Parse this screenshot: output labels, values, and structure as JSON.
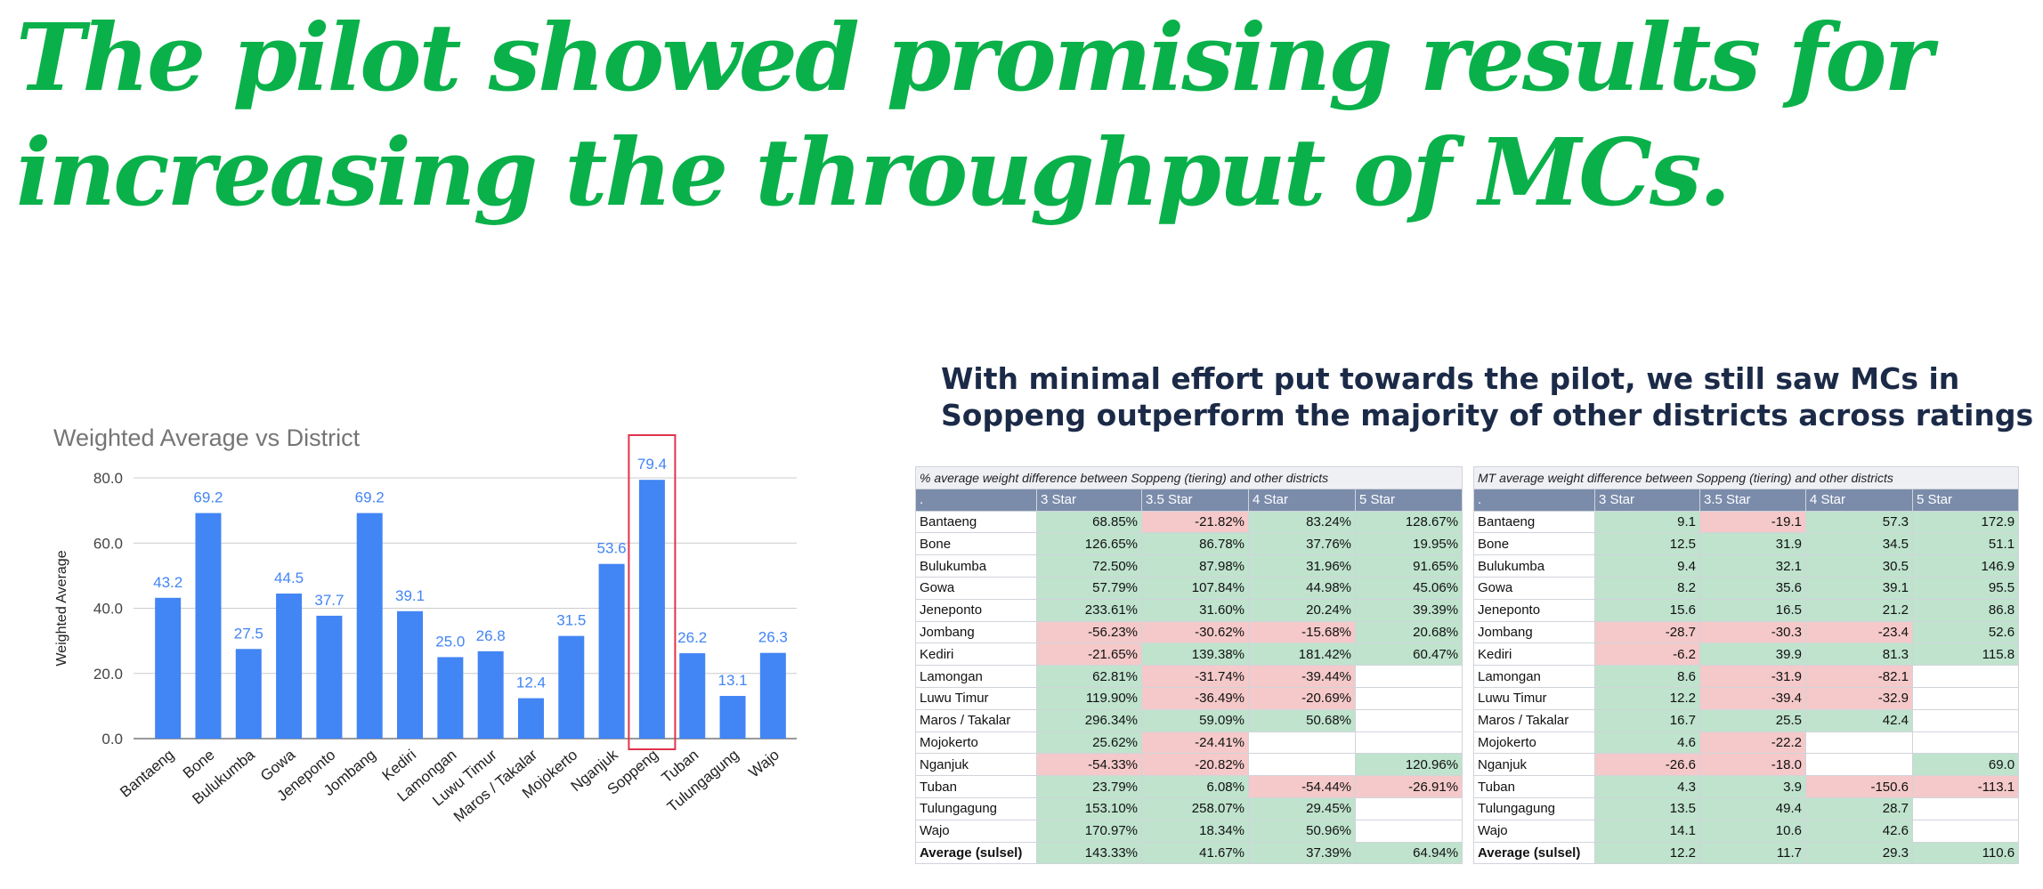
{
  "headline": {
    "line1": "The pilot showed promising results for",
    "line2": "increasing the throughput of MCs."
  },
  "subheadline": {
    "line1": "With minimal effort put towards the pilot, we still saw MCs in",
    "line2": "Soppeng outperform the majority of other districts across ratings"
  },
  "colors": {
    "headline": "#0ab14a",
    "subheadline": "#1b2a47",
    "bar": "#4285f4",
    "highlight_box": "#e0334c",
    "positive_cell": "#bfe3cd",
    "negative_cell": "#f5c9c9",
    "table_header": "#7b8cab"
  },
  "chart_data": {
    "type": "bar",
    "title": "Weighted Average vs District",
    "xlabel": "",
    "ylabel": "Weighted Average",
    "categories": [
      "Bantaeng",
      "Bone",
      "Bulukumba",
      "Gowa",
      "Jeneponto",
      "Jombang",
      "Kediri",
      "Lamongan",
      "Luwu Timur",
      "Maros / Takalar",
      "Mojokerto",
      "Nganjuk",
      "Soppeng",
      "Tuban",
      "Tulungagung",
      "Wajo"
    ],
    "values": [
      43.2,
      69.2,
      27.5,
      44.5,
      37.7,
      69.2,
      39.1,
      25.0,
      26.8,
      12.4,
      31.5,
      53.6,
      79.4,
      26.2,
      13.1,
      26.3
    ],
    "value_labels": [
      "43.2",
      "69.2",
      "27.5",
      "44.5",
      "37.7",
      "69.2",
      "39.1",
      "25.0",
      "26.8",
      "12.4",
      "31.5",
      "53.6",
      "79.4",
      "26.2",
      "13.1",
      "26.3"
    ],
    "yticks": [
      "0.0",
      "20.0",
      "40.0",
      "60.0",
      "80.0"
    ],
    "ylim": [
      0,
      80
    ],
    "grid": true,
    "legend": "none",
    "highlighted_category": "Soppeng"
  },
  "table_pct": {
    "caption": "% average weight difference between Soppeng (tiering) and other districts",
    "header": [
      ".",
      "3 Star",
      "3.5 Star",
      "4 Star",
      "5 Star"
    ],
    "rows": [
      {
        "district": "Bantaeng",
        "vals": [
          "68.85%",
          "-21.82%",
          "83.24%",
          "128.67%"
        ]
      },
      {
        "district": "Bone",
        "vals": [
          "126.65%",
          "86.78%",
          "37.76%",
          "19.95%"
        ]
      },
      {
        "district": "Bulukumba",
        "vals": [
          "72.50%",
          "87.98%",
          "31.96%",
          "91.65%"
        ]
      },
      {
        "district": "Gowa",
        "vals": [
          "57.79%",
          "107.84%",
          "44.98%",
          "45.06%"
        ]
      },
      {
        "district": "Jeneponto",
        "vals": [
          "233.61%",
          "31.60%",
          "20.24%",
          "39.39%"
        ]
      },
      {
        "district": "Jombang",
        "vals": [
          "-56.23%",
          "-30.62%",
          "-15.68%",
          "20.68%"
        ]
      },
      {
        "district": "Kediri",
        "vals": [
          "-21.65%",
          "139.38%",
          "181.42%",
          "60.47%"
        ]
      },
      {
        "district": "Lamongan",
        "vals": [
          "62.81%",
          "-31.74%",
          "-39.44%",
          ""
        ]
      },
      {
        "district": "Luwu Timur",
        "vals": [
          "119.90%",
          "-36.49%",
          "-20.69%",
          ""
        ]
      },
      {
        "district": "Maros / Takalar",
        "vals": [
          "296.34%",
          "59.09%",
          "50.68%",
          ""
        ]
      },
      {
        "district": "Mojokerto",
        "vals": [
          "25.62%",
          "-24.41%",
          "",
          ""
        ]
      },
      {
        "district": "Nganjuk",
        "vals": [
          "-54.33%",
          "-20.82%",
          "",
          "120.96%"
        ]
      },
      {
        "district": "Tuban",
        "vals": [
          "23.79%",
          "6.08%",
          "-54.44%",
          "-26.91%"
        ]
      },
      {
        "district": "Tulungagung",
        "vals": [
          "153.10%",
          "258.07%",
          "29.45%",
          ""
        ]
      },
      {
        "district": "Wajo",
        "vals": [
          "170.97%",
          "18.34%",
          "50.96%",
          ""
        ]
      },
      {
        "district": "Average (sulsel)",
        "vals": [
          "143.33%",
          "41.67%",
          "37.39%",
          "64.94%"
        ]
      }
    ]
  },
  "table_mt": {
    "caption": "MT average weight difference between Soppeng (tiering) and other districts",
    "header": [
      ".",
      "3 Star",
      "3.5 Star",
      "4 Star",
      "5 Star"
    ],
    "rows": [
      {
        "district": "Bantaeng",
        "vals": [
          "9.1",
          "-19.1",
          "57.3",
          "172.9"
        ]
      },
      {
        "district": "Bone",
        "vals": [
          "12.5",
          "31.9",
          "34.5",
          "51.1"
        ]
      },
      {
        "district": "Bulukumba",
        "vals": [
          "9.4",
          "32.1",
          "30.5",
          "146.9"
        ]
      },
      {
        "district": "Gowa",
        "vals": [
          "8.2",
          "35.6",
          "39.1",
          "95.5"
        ]
      },
      {
        "district": "Jeneponto",
        "vals": [
          "15.6",
          "16.5",
          "21.2",
          "86.8"
        ]
      },
      {
        "district": "Jombang",
        "vals": [
          "-28.7",
          "-30.3",
          "-23.4",
          "52.6"
        ]
      },
      {
        "district": "Kediri",
        "vals": [
          "-6.2",
          "39.9",
          "81.3",
          "115.8"
        ]
      },
      {
        "district": "Lamongan",
        "vals": [
          "8.6",
          "-31.9",
          "-82.1",
          ""
        ]
      },
      {
        "district": "Luwu Timur",
        "vals": [
          "12.2",
          "-39.4",
          "-32.9",
          ""
        ]
      },
      {
        "district": "Maros / Takalar",
        "vals": [
          "16.7",
          "25.5",
          "42.4",
          ""
        ]
      },
      {
        "district": "Mojokerto",
        "vals": [
          "4.6",
          "-22.2",
          "",
          ""
        ]
      },
      {
        "district": "Nganjuk",
        "vals": [
          "-26.6",
          "-18.0",
          "",
          "69.0"
        ]
      },
      {
        "district": "Tuban",
        "vals": [
          "4.3",
          "3.9",
          "-150.6",
          "-113.1"
        ]
      },
      {
        "district": "Tulungagung",
        "vals": [
          "13.5",
          "49.4",
          "28.7",
          ""
        ]
      },
      {
        "district": "Wajo",
        "vals": [
          "14.1",
          "10.6",
          "42.6",
          ""
        ]
      },
      {
        "district": "Average (sulsel)",
        "vals": [
          "12.2",
          "11.7",
          "29.3",
          "110.6"
        ]
      }
    ]
  }
}
